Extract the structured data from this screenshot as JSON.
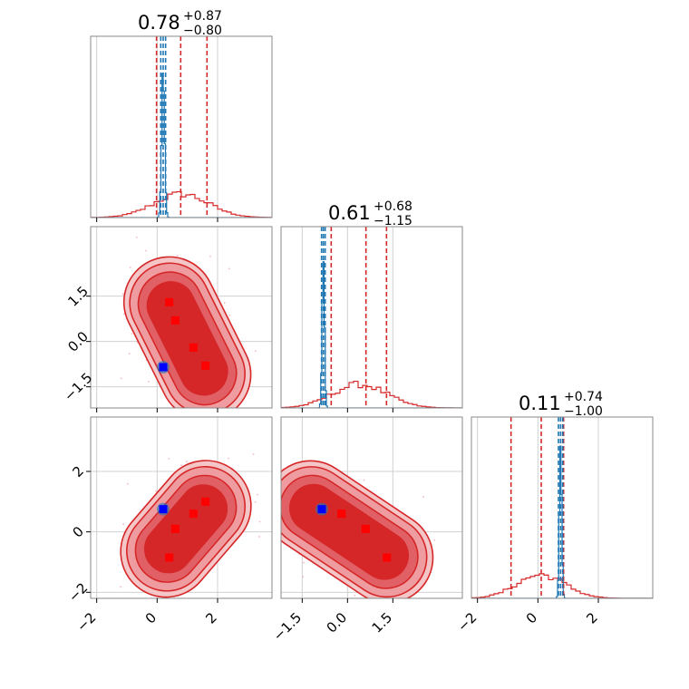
{
  "chart_data": {
    "type": "corner",
    "parameters": 3,
    "axis_range": [
      -2.2,
      3.8
    ],
    "grid": true,
    "colors": {
      "posterior_a": "#d62728",
      "posterior_b": "#1f77b4",
      "truth_markers": "#ff0000",
      "injection_marker": "#0000ff",
      "scatter": "#f4a6b8"
    },
    "diagonal": [
      {
        "title_value": "0.78",
        "title_plus": "+0.87",
        "title_minus": "−0.80",
        "red_quantiles": [
          -0.02,
          0.78,
          1.65
        ],
        "blue_quantiles": [
          0.12,
          0.2,
          0.28
        ],
        "red_hist_center": 0.8,
        "red_hist_width": 0.9,
        "blue_hist_center": 0.2,
        "blue_hist_width": 0.05
      },
      {
        "title_value": "0.61",
        "title_plus": "+0.68",
        "title_minus": "−1.15",
        "red_quantiles": [
          -0.54,
          0.61,
          1.29
        ],
        "blue_quantiles": [
          -0.86,
          -0.8,
          -0.74
        ],
        "red_hist_center": 0.4,
        "red_hist_width": 0.9,
        "blue_hist_center": -0.8,
        "blue_hist_width": 0.04
      },
      {
        "title_value": "0.11",
        "title_plus": "+0.74",
        "title_minus": "−1.00",
        "red_quantiles": [
          -0.89,
          0.11,
          0.85
        ],
        "blue_quantiles": [
          0.68,
          0.75,
          0.82
        ],
        "red_hist_center": 0.1,
        "red_hist_width": 0.8,
        "blue_hist_center": 0.75,
        "blue_hist_width": 0.04
      }
    ],
    "off_diagonal": [
      {
        "row": 1,
        "col": 0,
        "red_points": [
          [
            0.4,
            1.3
          ],
          [
            0.6,
            0.7
          ],
          [
            1.2,
            -0.2
          ],
          [
            1.6,
            -0.8
          ]
        ],
        "blue_point": [
          0.2,
          -0.85
        ],
        "contour_axis": [
          [
            0.2,
            1.7
          ],
          [
            1.8,
            -1.5
          ]
        ]
      },
      {
        "row": 2,
        "col": 0,
        "red_points": [
          [
            1.6,
            1.0
          ],
          [
            1.2,
            0.6
          ],
          [
            0.6,
            0.1
          ],
          [
            0.4,
            -0.85
          ]
        ],
        "blue_point": [
          0.2,
          0.75
        ],
        "contour_axis": [
          [
            0.0,
            -1.0
          ],
          [
            1.9,
            1.2
          ]
        ]
      },
      {
        "row": 2,
        "col": 1,
        "red_points": [
          [
            -0.2,
            0.6
          ],
          [
            0.6,
            0.1
          ],
          [
            1.3,
            -0.85
          ]
        ],
        "blue_point": [
          -0.85,
          0.75
        ],
        "contour_axis": [
          [
            -1.6,
            1.1
          ],
          [
            1.7,
            -1.1
          ]
        ]
      }
    ],
    "ticks": {
      "col0": [
        "−2",
        "0",
        "2"
      ],
      "col0_values": [
        -2,
        0,
        2
      ],
      "col1": [
        "−1.5",
        "0.0",
        "1.5"
      ],
      "col1_values": [
        -1.5,
        0,
        1.5
      ],
      "col2": [
        "−2",
        "0",
        "2"
      ],
      "col2_values": [
        -2,
        0,
        2
      ],
      "row1": [
        "1.5",
        "0.0",
        "−1.5"
      ],
      "row1_values": [
        1.5,
        0,
        -1.5
      ],
      "row2": [
        "2",
        "0",
        "−2"
      ],
      "row2_values": [
        2,
        0,
        -2
      ]
    }
  }
}
